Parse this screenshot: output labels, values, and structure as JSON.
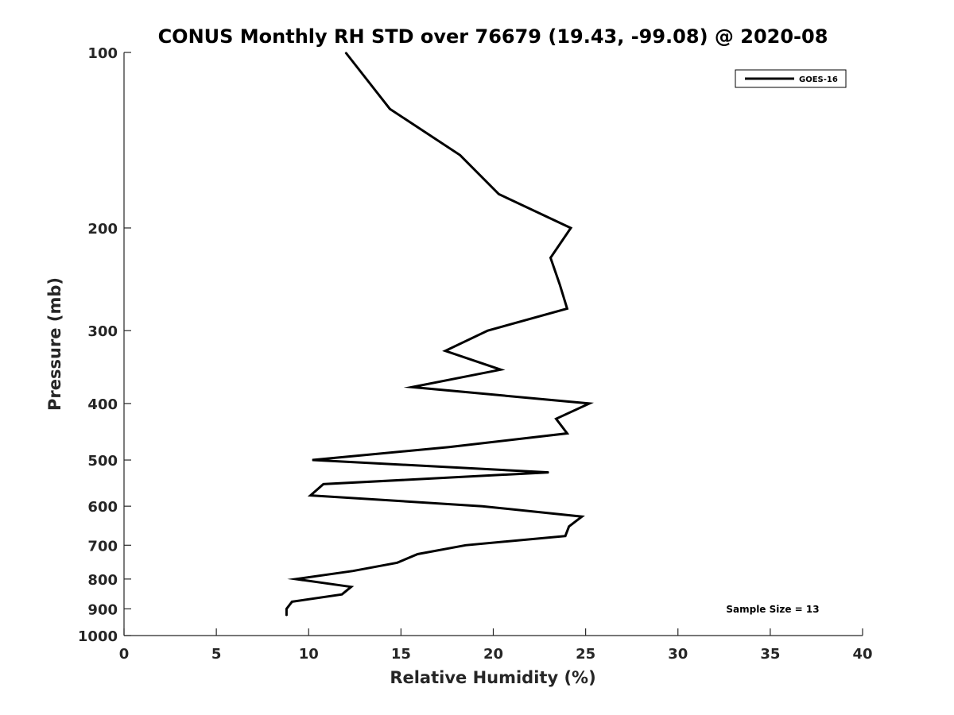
{
  "chart_data": {
    "type": "line",
    "title": "CONUS Monthly RH STD over 76679 (19.43, -99.08) @ 2020-08",
    "xlabel": "Relative Humidity (%)",
    "ylabel": "Pressure (mb)",
    "xlim": [
      0,
      40
    ],
    "ylim": [
      100,
      1000
    ],
    "y_scale": "log",
    "y_inverted": true,
    "x_ticks": [
      0,
      5,
      10,
      15,
      20,
      25,
      30,
      35,
      40
    ],
    "y_ticks": [
      100,
      200,
      300,
      400,
      500,
      600,
      700,
      800,
      900,
      1000
    ],
    "grid": false,
    "legend_position": "top-right",
    "annotation": "Sample Size = 13",
    "series": [
      {
        "name": "GOES-16",
        "color": "#000000",
        "points": [
          {
            "x": 12.0,
            "y": 100
          },
          {
            "x": 14.4,
            "y": 125
          },
          {
            "x": 18.2,
            "y": 150
          },
          {
            "x": 20.3,
            "y": 175
          },
          {
            "x": 24.2,
            "y": 200
          },
          {
            "x": 23.1,
            "y": 225
          },
          {
            "x": 23.6,
            "y": 250
          },
          {
            "x": 24.0,
            "y": 275
          },
          {
            "x": 19.7,
            "y": 300
          },
          {
            "x": 17.4,
            "y": 325
          },
          {
            "x": 20.4,
            "y": 350
          },
          {
            "x": 15.6,
            "y": 375
          },
          {
            "x": 25.2,
            "y": 400
          },
          {
            "x": 23.4,
            "y": 425
          },
          {
            "x": 24.0,
            "y": 450
          },
          {
            "x": 17.6,
            "y": 475
          },
          {
            "x": 10.2,
            "y": 500
          },
          {
            "x": 23.0,
            "y": 525
          },
          {
            "x": 10.8,
            "y": 550
          },
          {
            "x": 10.1,
            "y": 575
          },
          {
            "x": 19.4,
            "y": 600
          },
          {
            "x": 24.8,
            "y": 625
          },
          {
            "x": 24.1,
            "y": 650
          },
          {
            "x": 23.9,
            "y": 675
          },
          {
            "x": 18.5,
            "y": 700
          },
          {
            "x": 15.9,
            "y": 725
          },
          {
            "x": 14.8,
            "y": 750
          },
          {
            "x": 12.4,
            "y": 775
          },
          {
            "x": 9.3,
            "y": 800
          },
          {
            "x": 12.3,
            "y": 825
          },
          {
            "x": 11.8,
            "y": 850
          },
          {
            "x": 9.1,
            "y": 875
          },
          {
            "x": 8.8,
            "y": 900
          },
          {
            "x": 8.8,
            "y": 925
          }
        ]
      }
    ]
  }
}
